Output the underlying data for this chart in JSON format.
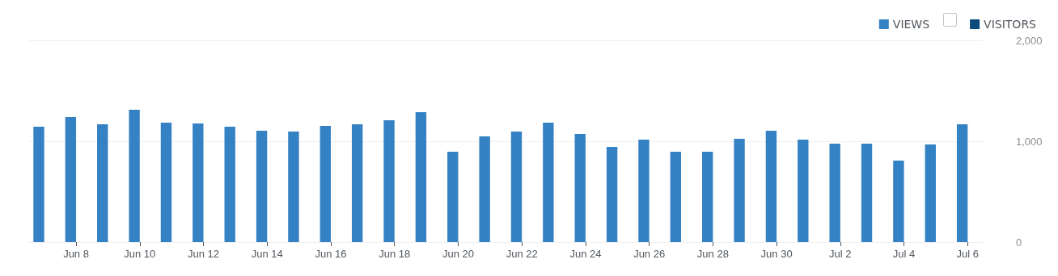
{
  "chart_data": {
    "type": "bar",
    "categories": [
      null,
      "Jun 8",
      null,
      "Jun 10",
      null,
      "Jun 12",
      null,
      "Jun 14",
      null,
      "Jun 16",
      null,
      "Jun 18",
      null,
      "Jun 20",
      null,
      "Jun 22",
      null,
      "Jun 24",
      null,
      "Jun 26",
      null,
      "Jun 28",
      null,
      "Jun 30",
      null,
      "Jul 2",
      null,
      "Jul 4",
      null,
      "Jul 6"
    ],
    "series": [
      {
        "name": "VIEWS",
        "color": "#3482c4",
        "values": [
          1144,
          1240,
          1168,
          1312,
          1184,
          1176,
          1144,
          1104,
          1096,
          1152,
          1168,
          1208,
          1288,
          896,
          1048,
          1096,
          1184,
          1072,
          944,
          1016,
          896,
          896,
          1024,
          1104,
          1016,
          976,
          976,
          808,
          968,
          1168
        ]
      },
      {
        "name": "VISITORS",
        "color": "#0b4a7a",
        "values": [
          null,
          null,
          null,
          null,
          null,
          null,
          null,
          null,
          null,
          null,
          null,
          null,
          null,
          null,
          null,
          null,
          null,
          null,
          null,
          null,
          null,
          null,
          null,
          null,
          null,
          null,
          null,
          null,
          null,
          null
        ]
      }
    ],
    "ylim": [
      0,
      2000
    ],
    "yticks": [
      0,
      {
        "value": 1000,
        "label": "1,000"
      },
      {
        "value": 2000,
        "label": "2,000"
      }
    ],
    "grid": "y",
    "legend": "top right"
  }
}
